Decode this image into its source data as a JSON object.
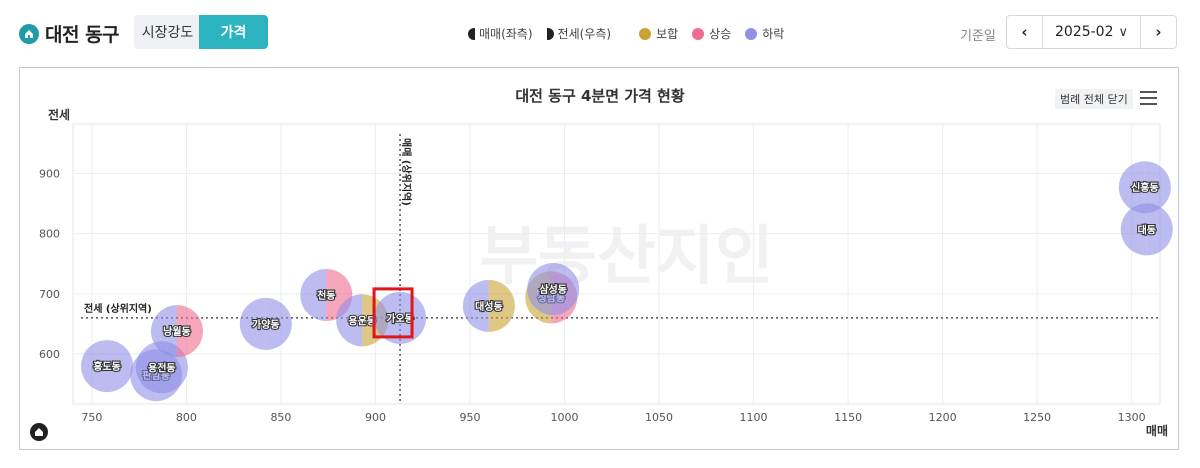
{
  "header": {
    "region_title": "대전 동구",
    "tabs": [
      {
        "label": "시장강도",
        "active": false
      },
      {
        "label": "가격",
        "active": true
      }
    ],
    "legend": {
      "sale": "매매(좌측)",
      "jeonse": "전세(우측)",
      "flat": "보합",
      "rise": "상승",
      "fall": "하락"
    },
    "date_label": "기준일",
    "date_value": "2025-02"
  },
  "colors": {
    "brand": "#2bb3bf",
    "flat": "#c9a233",
    "rise": "#f06b8e",
    "fall": "#8f90e8"
  },
  "chart_data": {
    "type": "scatter",
    "title": "대전 동구 4분면 가격 현황",
    "xlabel": "매매",
    "ylabel": "전세",
    "xlim": [
      740,
      1315
    ],
    "ylim": [
      517,
      982
    ],
    "x_ticks": [
      750,
      800,
      850,
      900,
      950,
      1000,
      1050,
      1100,
      1150,
      1200,
      1250,
      1300
    ],
    "y_ticks": [
      600,
      700,
      800,
      900
    ],
    "grid": true,
    "reference_lines": {
      "x": {
        "value": 913,
        "label": "매매 (상위지역)"
      },
      "y": {
        "value": 660,
        "label": "전세 (상위지역)"
      }
    },
    "legend_button": "범례 전체 닫기",
    "watermark": "부동산지인",
    "points": [
      {
        "name": "홍도동",
        "x": 758,
        "y": 580,
        "sale": "fall",
        "jeonse": "fall"
      },
      {
        "name": "판암동",
        "x": 784,
        "y": 565,
        "sale": "fall",
        "jeonse": "fall"
      },
      {
        "name": "용전동",
        "x": 787,
        "y": 578,
        "sale": "fall",
        "jeonse": "fall"
      },
      {
        "name": "낭월동",
        "x": 795,
        "y": 638,
        "sale": "fall",
        "jeonse": "rise"
      },
      {
        "name": "가양동",
        "x": 842,
        "y": 650,
        "sale": "fall",
        "jeonse": "fall"
      },
      {
        "name": "천동",
        "x": 874,
        "y": 698,
        "sale": "fall",
        "jeonse": "rise"
      },
      {
        "name": "용운동",
        "x": 893,
        "y": 656,
        "sale": "fall",
        "jeonse": "flat"
      },
      {
        "name": "가오동",
        "x": 913,
        "y": 660,
        "sale": "fall",
        "jeonse": "fall"
      },
      {
        "name": "대성동",
        "x": 960,
        "y": 680,
        "sale": "fall",
        "jeonse": "flat"
      },
      {
        "name": "성남동",
        "x": 993,
        "y": 694,
        "sale": "flat",
        "jeonse": "rise"
      },
      {
        "name": "삼성동",
        "x": 994,
        "y": 708,
        "sale": "fall",
        "jeonse": "fall"
      },
      {
        "name": "신흥동",
        "x": 1307,
        "y": 877,
        "sale": "fall",
        "jeonse": "fall"
      },
      {
        "name": "대동",
        "x": 1308,
        "y": 807,
        "sale": "fall",
        "jeonse": "fall"
      }
    ],
    "highlight": "가오동"
  }
}
